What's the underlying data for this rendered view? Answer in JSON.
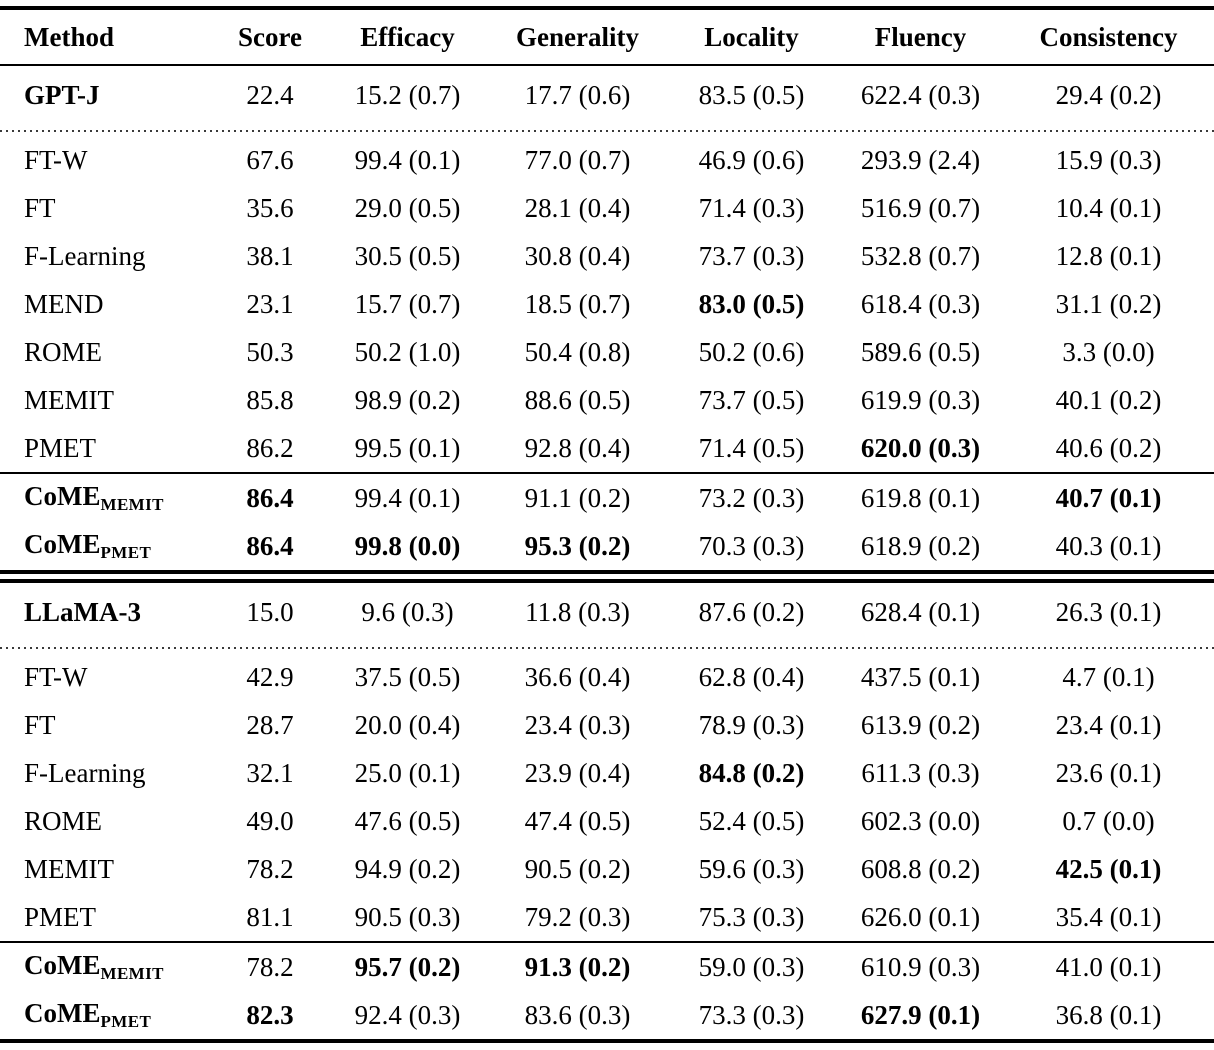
{
  "colors": {
    "text": "#000000",
    "background": "#ffffff",
    "rule": "#000000"
  },
  "table": {
    "columns": [
      "Method",
      "Score",
      "Efficacy",
      "Generality",
      "Locality",
      "Fluency",
      "Consistency"
    ],
    "blocks": [
      {
        "model_row": {
          "method": "GPT-J",
          "method_bold": true,
          "values": [
            "22.4",
            "15.2 (0.7)",
            "17.7 (0.6)",
            "83.5 (0.5)",
            "622.4 (0.3)",
            "29.4 (0.2)"
          ],
          "bold_values": []
        },
        "method_rows": [
          {
            "method": "FT-W",
            "method_bold": false,
            "values": [
              "67.6",
              "99.4 (0.1)",
              "77.0 (0.7)",
              "46.9 (0.6)",
              "293.9 (2.4)",
              "15.9 (0.3)"
            ],
            "bold_values": []
          },
          {
            "method": "FT",
            "method_bold": false,
            "values": [
              "35.6",
              "29.0 (0.5)",
              "28.1 (0.4)",
              "71.4 (0.3)",
              "516.9 (0.7)",
              "10.4 (0.1)"
            ],
            "bold_values": []
          },
          {
            "method": "F-Learning",
            "method_bold": false,
            "values": [
              "38.1",
              "30.5 (0.5)",
              "30.8 (0.4)",
              "73.7 (0.3)",
              "532.8 (0.7)",
              "12.8 (0.1)"
            ],
            "bold_values": []
          },
          {
            "method": "MEND",
            "method_bold": false,
            "values": [
              "23.1",
              "15.7 (0.7)",
              "18.5 (0.7)",
              "83.0 (0.5)",
              "618.4 (0.3)",
              "31.1 (0.2)"
            ],
            "bold_values": [
              3
            ]
          },
          {
            "method": "ROME",
            "method_bold": false,
            "values": [
              "50.3",
              "50.2 (1.0)",
              "50.4 (0.8)",
              "50.2 (0.6)",
              "589.6 (0.5)",
              "3.3 (0.0)"
            ],
            "bold_values": []
          },
          {
            "method": "MEMIT",
            "method_bold": false,
            "values": [
              "85.8",
              "98.9 (0.2)",
              "88.6 (0.5)",
              "73.7 (0.5)",
              "619.9 (0.3)",
              "40.1 (0.2)"
            ],
            "bold_values": []
          },
          {
            "method": "PMET",
            "method_bold": false,
            "values": [
              "86.2",
              "99.5 (0.1)",
              "92.8 (0.4)",
              "71.4 (0.5)",
              "620.0 (0.3)",
              "40.6 (0.2)"
            ],
            "bold_values": [
              4
            ]
          }
        ],
        "come_rows": [
          {
            "method": "CoME",
            "method_sub": "MEMIT",
            "method_bold": true,
            "values": [
              "86.4",
              "99.4 (0.1)",
              "91.1 (0.2)",
              "73.2 (0.3)",
              "619.8 (0.1)",
              "40.7 (0.1)"
            ],
            "bold_values": [
              0,
              5
            ]
          },
          {
            "method": "CoME",
            "method_sub": "PMET",
            "method_bold": true,
            "values": [
              "86.4",
              "99.8 (0.0)",
              "95.3 (0.2)",
              "70.3 (0.3)",
              "618.9 (0.2)",
              "40.3 (0.1)"
            ],
            "bold_values": [
              0,
              1,
              2
            ]
          }
        ]
      },
      {
        "model_row": {
          "method": "LLaMA-3",
          "method_bold": true,
          "values": [
            "15.0",
            "9.6 (0.3)",
            "11.8 (0.3)",
            "87.6 (0.2)",
            "628.4 (0.1)",
            "26.3 (0.1)"
          ],
          "bold_values": []
        },
        "method_rows": [
          {
            "method": "FT-W",
            "method_bold": false,
            "values": [
              "42.9",
              "37.5 (0.5)",
              "36.6 (0.4)",
              "62.8 (0.4)",
              "437.5 (0.1)",
              "4.7 (0.1)"
            ],
            "bold_values": []
          },
          {
            "method": "FT",
            "method_bold": false,
            "values": [
              "28.7",
              "20.0 (0.4)",
              "23.4 (0.3)",
              "78.9 (0.3)",
              "613.9 (0.2)",
              "23.4 (0.1)"
            ],
            "bold_values": []
          },
          {
            "method": "F-Learning",
            "method_bold": false,
            "values": [
              "32.1",
              "25.0 (0.1)",
              "23.9 (0.4)",
              "84.8 (0.2)",
              "611.3 (0.3)",
              "23.6 (0.1)"
            ],
            "bold_values": [
              3
            ]
          },
          {
            "method": "ROME",
            "method_bold": false,
            "values": [
              "49.0",
              "47.6 (0.5)",
              "47.4 (0.5)",
              "52.4 (0.5)",
              "602.3 (0.0)",
              "0.7 (0.0)"
            ],
            "bold_values": []
          },
          {
            "method": "MEMIT",
            "method_bold": false,
            "values": [
              "78.2",
              "94.9 (0.2)",
              "90.5 (0.2)",
              "59.6 (0.3)",
              "608.8 (0.2)",
              "42.5 (0.1)"
            ],
            "bold_values": [
              5
            ]
          },
          {
            "method": "PMET",
            "method_bold": false,
            "values": [
              "81.1",
              "90.5 (0.3)",
              "79.2 (0.3)",
              "75.3 (0.3)",
              "626.0 (0.1)",
              "35.4 (0.1)"
            ],
            "bold_values": []
          }
        ],
        "come_rows": [
          {
            "method": "CoME",
            "method_sub": "MEMIT",
            "method_bold": true,
            "values": [
              "78.2",
              "95.7 (0.2)",
              "91.3 (0.2)",
              "59.0 (0.3)",
              "610.9 (0.3)",
              "41.0 (0.1)"
            ],
            "bold_values": [
              1,
              2
            ]
          },
          {
            "method": "CoME",
            "method_sub": "PMET",
            "method_bold": true,
            "values": [
              "82.3",
              "92.4 (0.3)",
              "83.6 (0.3)",
              "73.3 (0.3)",
              "627.9 (0.1)",
              "36.8 (0.1)"
            ],
            "bold_values": [
              0,
              4
            ]
          }
        ]
      }
    ]
  }
}
